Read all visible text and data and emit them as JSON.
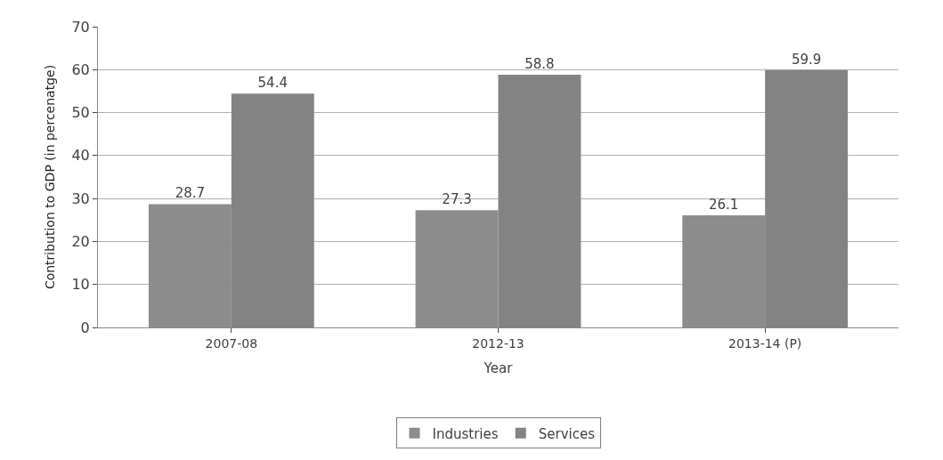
{
  "chart_data": {
    "type": "bar",
    "xlabel": "Year",
    "ylabel": "Contribution to GDP (in percenatge)",
    "categories": [
      "2007-08",
      "2012-13",
      "2013-14 (P)"
    ],
    "series": [
      {
        "name": "Industries",
        "color": "#8c8c8c",
        "values": [
          28.7,
          27.3,
          26.1
        ]
      },
      {
        "name": "Services",
        "color": "#838383",
        "values": [
          54.4,
          58.8,
          59.9
        ]
      }
    ],
    "ylim": [
      0,
      70
    ],
    "yticks": [
      0,
      10,
      20,
      30,
      40,
      50,
      60,
      70
    ],
    "grid": "y",
    "legend": "bottom",
    "data_labels": true
  }
}
